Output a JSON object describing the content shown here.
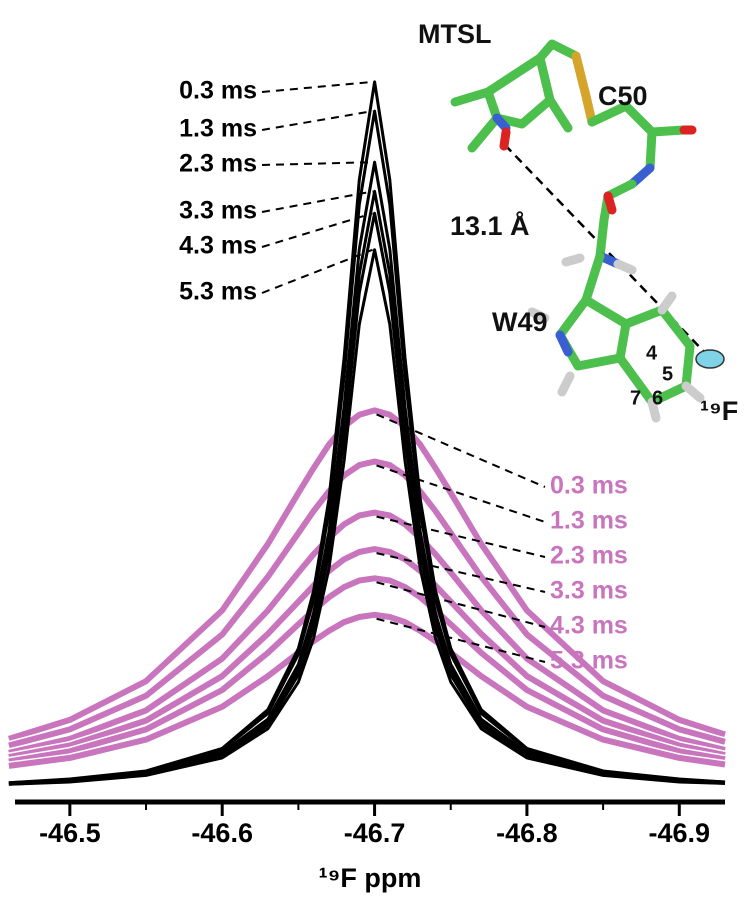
{
  "chart_data": {
    "type": "line",
    "xlabel": "¹⁹F ppm",
    "x": [
      -46.46,
      -46.5,
      -46.55,
      -46.6,
      -46.63,
      -46.65,
      -46.66,
      -46.67,
      -46.68,
      -46.69,
      -46.7,
      -46.71,
      -46.72,
      -46.73,
      -46.74,
      -46.75,
      -46.77,
      -46.8,
      -46.85,
      -46.9,
      -46.93
    ],
    "xlim": [
      -46.464,
      -46.93
    ],
    "xticks": [
      -46.5,
      -46.6,
      -46.7,
      -46.8,
      -46.9
    ],
    "ylim": [
      0,
      100
    ],
    "series": [
      {
        "name": "0.3 ms",
        "color": "#c875be",
        "values": [
          7.0,
          9.6,
          14.9,
          24.6,
          33.7,
          40.7,
          44.1,
          47.3,
          49.8,
          51.4,
          52,
          51.4,
          49.8,
          47.3,
          44.1,
          40.7,
          33.7,
          24.6,
          14.9,
          9.6,
          7.6
        ]
      },
      {
        "name": "1.3 ms",
        "color": "#c875be",
        "values": [
          6.1,
          8.3,
          12.9,
          21.3,
          29.2,
          35.2,
          38.2,
          40.9,
          43.1,
          44.5,
          45,
          44.5,
          43.1,
          40.9,
          38.2,
          35.2,
          29.2,
          21.3,
          12.9,
          8.3,
          6.6
        ]
      },
      {
        "name": "2.3 ms",
        "color": "#c875be",
        "values": [
          5.1,
          7.0,
          10.9,
          18.0,
          24.6,
          29.8,
          32.3,
          34.5,
          36.4,
          37.6,
          38,
          37.6,
          36.4,
          34.5,
          32.3,
          29.8,
          24.6,
          18.0,
          10.9,
          7.0,
          5.5
        ]
      },
      {
        "name": "3.3 ms",
        "color": "#c875be",
        "values": [
          4.5,
          6.1,
          9.5,
          15.6,
          21.4,
          25.8,
          28.0,
          30.0,
          31.6,
          32.6,
          33,
          32.6,
          31.6,
          30.0,
          28.0,
          25.8,
          21.4,
          15.6,
          9.5,
          6.1,
          4.8
        ]
      },
      {
        "name": "4.3 ms",
        "color": "#c875be",
        "values": [
          3.9,
          5.3,
          8.3,
          13.7,
          18.8,
          22.7,
          24.6,
          26.4,
          27.8,
          28.7,
          29,
          28.7,
          27.8,
          26.4,
          24.6,
          22.7,
          18.8,
          13.7,
          8.3,
          5.3,
          4.2
        ]
      },
      {
        "name": "5.3 ms",
        "color": "#c875be",
        "values": [
          3.3,
          4.4,
          6.9,
          11.4,
          15.6,
          18.8,
          20.4,
          21.8,
          23.0,
          23.7,
          24,
          23.7,
          23.0,
          21.8,
          20.4,
          18.8,
          15.6,
          11.4,
          6.9,
          4.4,
          3.5
        ]
      },
      {
        "name": "0.3 ms",
        "color": "#000000",
        "values": [
          1.0,
          1.5,
          2.6,
          5.7,
          11.0,
          19.4,
          27.3,
          39.8,
          59.2,
          83.6,
          97,
          83.6,
          59.2,
          39.8,
          27.3,
          19.4,
          11.0,
          5.7,
          2.6,
          1.5,
          1.1
        ]
      },
      {
        "name": "1.3 ms",
        "color": "#000000",
        "values": [
          1.0,
          1.4,
          2.5,
          5.5,
          10.5,
          18.6,
          26.1,
          38.1,
          56.7,
          80.2,
          93,
          80.2,
          56.7,
          38.1,
          26.1,
          18.6,
          10.5,
          5.5,
          2.5,
          1.4,
          1.1
        ]
      },
      {
        "name": "2.3 ms",
        "color": "#000000",
        "values": [
          0.9,
          1.3,
          2.3,
          5.1,
          9.7,
          17.2,
          24.2,
          35.3,
          52.5,
          74.1,
          86,
          74.1,
          52.5,
          35.3,
          24.2,
          17.2,
          9.7,
          5.1,
          2.3,
          1.3,
          1.0
        ]
      },
      {
        "name": "3.3 ms",
        "color": "#000000",
        "values": [
          0.9,
          1.3,
          2.2,
          4.8,
          9.3,
          16.4,
          23.0,
          33.6,
          50.0,
          70.7,
          82,
          70.7,
          50.0,
          33.6,
          23.0,
          16.4,
          9.3,
          4.8,
          2.2,
          1.3,
          1.0
        ]
      },
      {
        "name": "4.3 ms",
        "color": "#000000",
        "values": [
          0.8,
          1.2,
          2.1,
          4.6,
          8.9,
          15.8,
          22.2,
          32.4,
          48.2,
          68.1,
          79,
          68.1,
          48.2,
          32.4,
          22.2,
          15.8,
          8.9,
          4.6,
          2.1,
          1.2,
          0.9
        ]
      },
      {
        "name": "5.3 ms",
        "color": "#000000",
        "values": [
          0.8,
          1.1,
          2.0,
          4.4,
          8.4,
          14.8,
          20.8,
          30.3,
          45.1,
          63.8,
          74,
          63.8,
          45.1,
          30.3,
          20.8,
          14.8,
          8.4,
          4.4,
          2.0,
          1.1,
          0.9
        ]
      }
    ],
    "inset": {
      "labels": [
        "MTSL",
        "C50",
        "13.1 Å",
        "W49",
        "4",
        "5",
        "7",
        "6",
        "¹⁹F"
      ]
    }
  }
}
